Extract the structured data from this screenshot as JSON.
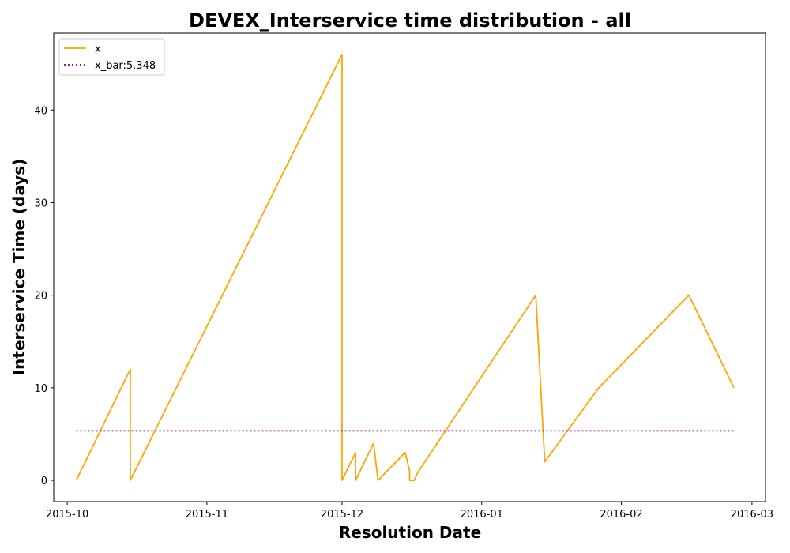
{
  "chart_data": {
    "type": "line",
    "title": "DEVEX_Interservice time distribution - all",
    "xlabel": "Resolution Date",
    "ylabel": "Interservice Time (days)",
    "xlim": [
      "2015-09-28",
      "2016-03-04"
    ],
    "ylim": [
      -2.3,
      48.3
    ],
    "x_ticks": [
      "2015-10",
      "2015-11",
      "2015-12",
      "2016-01",
      "2016-02",
      "2016-03"
    ],
    "y_ticks": [
      0,
      10,
      20,
      30,
      40
    ],
    "grid": false,
    "legend_position": "top-left",
    "series": [
      {
        "name": "x",
        "color": "#ffa500",
        "style": "solid",
        "points": [
          [
            "2015-10-03",
            0
          ],
          [
            "2015-10-15",
            12
          ],
          [
            "2015-10-15",
            0
          ],
          [
            "2015-12-01",
            46
          ],
          [
            "2015-12-01",
            0
          ],
          [
            "2015-12-04",
            3
          ],
          [
            "2015-12-04",
            0
          ],
          [
            "2015-12-08",
            4
          ],
          [
            "2015-12-09",
            0
          ],
          [
            "2015-12-15",
            3
          ],
          [
            "2015-12-16",
            1
          ],
          [
            "2015-12-16",
            0
          ],
          [
            "2015-12-17",
            0
          ],
          [
            "2015-12-18",
            1
          ],
          [
            "2016-01-13",
            20
          ],
          [
            "2016-01-15",
            2
          ],
          [
            "2016-01-27",
            10
          ],
          [
            "2016-02-16",
            20
          ],
          [
            "2016-02-26",
            10
          ]
        ]
      },
      {
        "name": "x_bar:5.348",
        "color": "#800080",
        "style": "dotted",
        "points": [
          [
            "2015-10-03",
            5.348
          ],
          [
            "2016-02-26",
            5.348
          ]
        ]
      }
    ]
  }
}
